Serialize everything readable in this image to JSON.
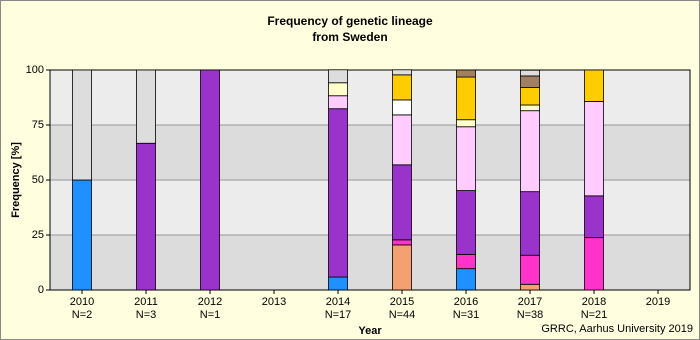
{
  "chart_data": {
    "type": "stacked_bar",
    "title": "Frequency of genetic lineage",
    "subtitle": "from Sweden",
    "xlabel": "Year",
    "ylabel": "Frequency [%]",
    "annotation": "GRRC, Aarhus University 2019",
    "categories": [
      "2010",
      "2011",
      "2012",
      "2013",
      "2014",
      "2015",
      "2016",
      "2017",
      "2018",
      "2019"
    ],
    "n_labels": [
      "N=2",
      "N=3",
      "N=1",
      null,
      "N=17",
      "N=44",
      "N=31",
      "N=38",
      "N=21",
      null
    ],
    "series": [
      {
        "color": "#1e90ff",
        "values": [
          50,
          0,
          0,
          0,
          5.9,
          0,
          9.7,
          0,
          0,
          0
        ]
      },
      {
        "color": "#f4a070",
        "values": [
          0,
          0,
          0,
          0,
          0,
          20.5,
          0,
          2.6,
          0,
          0
        ]
      },
      {
        "color": "#ff33cc",
        "values": [
          0,
          0,
          0,
          0,
          0,
          2.3,
          6.5,
          13.2,
          23.8,
          0
        ]
      },
      {
        "color": "#9933cc",
        "values": [
          0,
          66.7,
          100,
          0,
          76.5,
          34.1,
          29,
          28.9,
          19,
          0
        ]
      },
      {
        "color": "#ffccff",
        "values": [
          0,
          0,
          0,
          0,
          5.9,
          22.7,
          29,
          36.8,
          42.9,
          0
        ]
      },
      {
        "color": "#ffffff",
        "values": [
          0,
          0,
          0,
          0,
          0,
          6.8,
          0,
          0,
          0,
          0
        ]
      },
      {
        "color": "#ffffcc",
        "values": [
          0,
          0,
          0,
          0,
          5.9,
          0,
          3.2,
          2.6,
          0,
          0
        ]
      },
      {
        "color": "#ffcc00",
        "values": [
          0,
          0,
          0,
          0,
          0,
          11.4,
          19.4,
          7.9,
          14.3,
          0
        ]
      },
      {
        "color": "#a08060",
        "values": [
          0,
          0,
          0,
          0,
          0,
          0,
          3.2,
          5.3,
          0,
          0
        ]
      },
      {
        "color": "#dddddd",
        "values": [
          50,
          33.3,
          0,
          0,
          5.9,
          2.3,
          0,
          2.6,
          0,
          0
        ]
      }
    ],
    "ylim": [
      0,
      100
    ],
    "yticks": [
      0,
      25,
      50,
      75,
      100
    ],
    "grid": true
  }
}
